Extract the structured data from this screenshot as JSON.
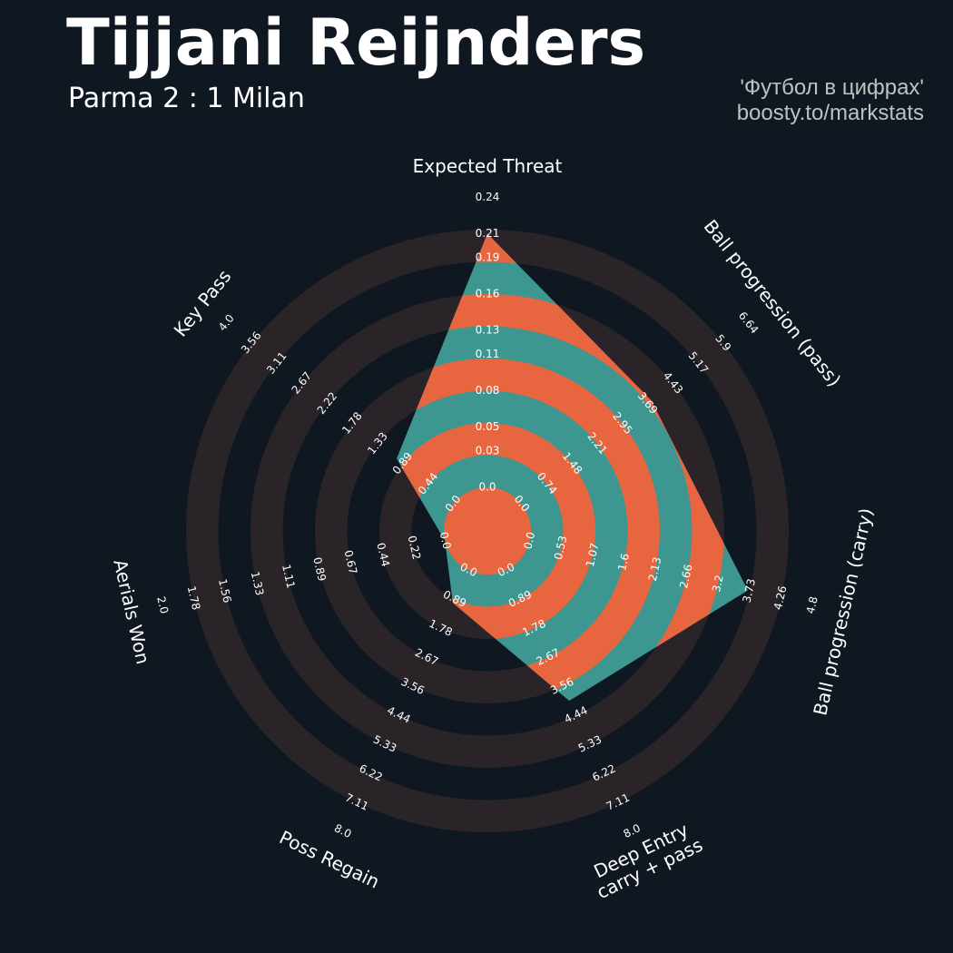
{
  "title": "Tijjani Reijnders",
  "subtitle": "Parma 2 : 1 Milan",
  "credits": [
    "'Футбол в цифрах'",
    "boosty.to/markstats"
  ],
  "chart_data": {
    "type": "radar",
    "params": [
      "Expected Threat",
      "Ball progression (pass)",
      "Ball progression (carry)",
      "Deep Entry\ncarry + pass",
      "Poss Regain",
      "Aerials Won",
      "Key Pass"
    ],
    "lims": [
      [
        0,
        0.24
      ],
      [
        0,
        6.64
      ],
      [
        0,
        4.8
      ],
      [
        0,
        8
      ],
      [
        0,
        8
      ],
      [
        0,
        2
      ],
      [
        0,
        4
      ]
    ],
    "ticks": [
      [
        {
          "value": 0,
          "label": "0.0"
        },
        0.03,
        0.05,
        0.08,
        0.11,
        0.13,
        0.16,
        0.19,
        0.21,
        0.24
      ],
      [
        {
          "value": 0,
          "label": "0.0"
        },
        0.74,
        1.48,
        2.21,
        2.95,
        3.69,
        4.43,
        5.17,
        5.9,
        6.64
      ],
      [
        {
          "value": 0,
          "label": "0.0"
        },
        0.53,
        1.07,
        1.6,
        2.13,
        2.66,
        3.2,
        3.73,
        4.26,
        4.8
      ],
      [
        {
          "value": 0,
          "label": "0.0"
        },
        0.89,
        1.78,
        2.67,
        3.56,
        4.44,
        5.33,
        6.22,
        7.11,
        {
          "value": 8,
          "label": "8.0"
        }
      ],
      [
        {
          "value": 0,
          "label": "0.0"
        },
        0.89,
        1.78,
        2.67,
        3.56,
        4.44,
        5.33,
        6.22,
        7.11,
        {
          "value": 8,
          "label": "8.0"
        }
      ],
      [
        {
          "value": 0,
          "label": "0.0"
        },
        0.22,
        0.44,
        0.67,
        0.89,
        1.11,
        1.33,
        1.56,
        1.78,
        {
          "value": 2,
          "label": "2.0"
        }
      ],
      [
        {
          "value": 0,
          "label": "0.0"
        },
        0.44,
        0.89,
        1.33,
        1.78,
        2.22,
        2.67,
        3.11,
        3.56,
        {
          "value": 4,
          "label": "4.0"
        }
      ]
    ],
    "values": [
      0.21,
      3.8,
      3.7,
      4,
      1,
      0,
      1
    ],
    "colors": {
      "area": "#3d9690",
      "area_rings": "#e8663f",
      "rings": "#2a2429"
    }
  }
}
